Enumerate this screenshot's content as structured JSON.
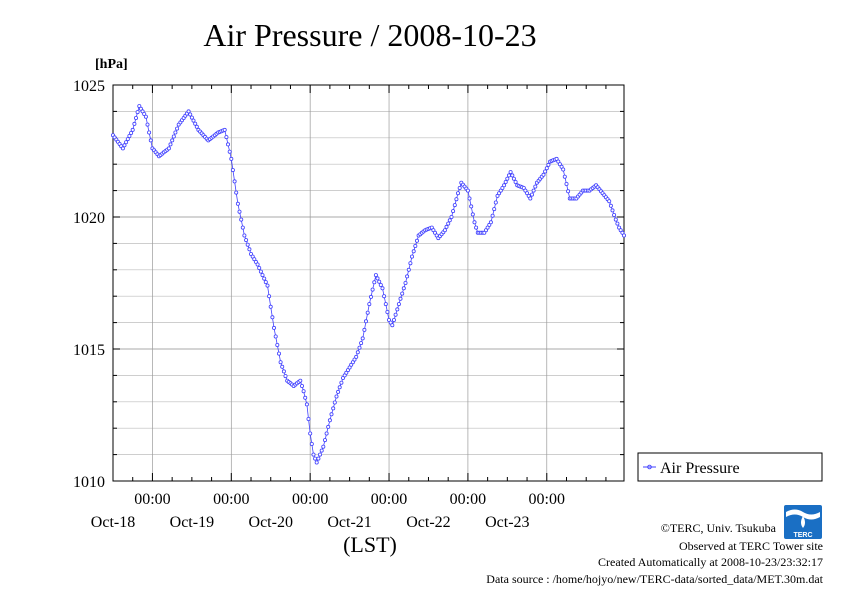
{
  "chart_data": {
    "type": "line",
    "title": "Air Pressure / 2008-10-23",
    "ylabel": "[hPa]",
    "xlabel": "(LST)",
    "ylim": [
      1010,
      1025
    ],
    "yticks": [
      "1010",
      "1015",
      "1020",
      "1025"
    ],
    "x_range": [
      "2008-10-17T12:00",
      "2008-10-23T23:30"
    ],
    "x_tick_time_label": "00:00",
    "x_date_labels": [
      "Oct-18",
      "Oct-19",
      "Oct-20",
      "Oct-21",
      "Oct-22",
      "Oct-23"
    ],
    "grid": true,
    "legend_position": "right",
    "series": [
      {
        "name": "Air Pressure",
        "color": "#4040ff",
        "interval": "30min",
        "points": [
          [
            "2008-10-17T12:00",
            1023.1
          ],
          [
            "2008-10-17T15:00",
            1022.6
          ],
          [
            "2008-10-17T18:00",
            1023.3
          ],
          [
            "2008-10-17T20:00",
            1024.2
          ],
          [
            "2008-10-17T22:00",
            1023.8
          ],
          [
            "2008-10-18T00:00",
            1022.6
          ],
          [
            "2008-10-18T02:00",
            1022.3
          ],
          [
            "2008-10-18T05:00",
            1022.6
          ],
          [
            "2008-10-18T08:00",
            1023.5
          ],
          [
            "2008-10-18T11:00",
            1024.0
          ],
          [
            "2008-10-18T14:00",
            1023.3
          ],
          [
            "2008-10-18T17:00",
            1022.9
          ],
          [
            "2008-10-18T20:00",
            1023.2
          ],
          [
            "2008-10-18T22:00",
            1023.3
          ],
          [
            "2008-10-19T00:00",
            1022.2
          ],
          [
            "2008-10-19T02:00",
            1020.5
          ],
          [
            "2008-10-19T04:00",
            1019.3
          ],
          [
            "2008-10-19T06:00",
            1018.6
          ],
          [
            "2008-10-19T08:00",
            1018.2
          ],
          [
            "2008-10-19T11:00",
            1017.4
          ],
          [
            "2008-10-19T13:00",
            1015.8
          ],
          [
            "2008-10-19T15:00",
            1014.5
          ],
          [
            "2008-10-19T17:00",
            1013.8
          ],
          [
            "2008-10-19T19:00",
            1013.6
          ],
          [
            "2008-10-19T21:00",
            1013.8
          ],
          [
            "2008-10-19T22:00",
            1013.4
          ],
          [
            "2008-10-19T23:00",
            1012.9
          ],
          [
            "2008-10-20T00:00",
            1011.8
          ],
          [
            "2008-10-20T01:00",
            1011.0
          ],
          [
            "2008-10-20T02:00",
            1010.7
          ],
          [
            "2008-10-20T04:00",
            1011.3
          ],
          [
            "2008-10-20T06:00",
            1012.3
          ],
          [
            "2008-10-20T08:00",
            1013.2
          ],
          [
            "2008-10-20T10:00",
            1013.9
          ],
          [
            "2008-10-20T12:00",
            1014.3
          ],
          [
            "2008-10-20T14:00",
            1014.7
          ],
          [
            "2008-10-20T16:00",
            1015.4
          ],
          [
            "2008-10-20T18:00",
            1016.7
          ],
          [
            "2008-10-20T20:00",
            1017.8
          ],
          [
            "2008-10-20T22:00",
            1017.3
          ],
          [
            "2008-10-21T00:00",
            1016.1
          ],
          [
            "2008-10-21T01:00",
            1015.9
          ],
          [
            "2008-10-21T03:00",
            1016.7
          ],
          [
            "2008-10-21T05:00",
            1017.5
          ],
          [
            "2008-10-21T07:00",
            1018.5
          ],
          [
            "2008-10-21T09:00",
            1019.3
          ],
          [
            "2008-10-21T11:00",
            1019.5
          ],
          [
            "2008-10-21T13:00",
            1019.6
          ],
          [
            "2008-10-21T14:00",
            1019.4
          ],
          [
            "2008-10-21T15:00",
            1019.2
          ],
          [
            "2008-10-21T17:00",
            1019.5
          ],
          [
            "2008-10-21T19:00",
            1020.0
          ],
          [
            "2008-10-21T21:00",
            1020.9
          ],
          [
            "2008-10-21T22:00",
            1021.3
          ],
          [
            "2008-10-22T00:00",
            1021.0
          ],
          [
            "2008-10-22T02:00",
            1019.8
          ],
          [
            "2008-10-22T03:00",
            1019.4
          ],
          [
            "2008-10-22T05:00",
            1019.4
          ],
          [
            "2008-10-22T07:00",
            1019.8
          ],
          [
            "2008-10-22T09:00",
            1020.8
          ],
          [
            "2008-10-22T11:00",
            1021.2
          ],
          [
            "2008-10-22T13:00",
            1021.7
          ],
          [
            "2008-10-22T15:00",
            1021.2
          ],
          [
            "2008-10-22T17:00",
            1021.1
          ],
          [
            "2008-10-22T19:00",
            1020.7
          ],
          [
            "2008-10-22T21:00",
            1021.3
          ],
          [
            "2008-10-22T23:00",
            1021.6
          ],
          [
            "2008-10-23T01:00",
            1022.1
          ],
          [
            "2008-10-23T03:00",
            1022.2
          ],
          [
            "2008-10-23T05:00",
            1021.8
          ],
          [
            "2008-10-23T07:00",
            1020.7
          ],
          [
            "2008-10-23T09:00",
            1020.7
          ],
          [
            "2008-10-23T11:00",
            1021.0
          ],
          [
            "2008-10-23T13:00",
            1021.0
          ],
          [
            "2008-10-23T15:00",
            1021.2
          ],
          [
            "2008-10-23T17:00",
            1020.9
          ],
          [
            "2008-10-23T19:00",
            1020.6
          ],
          [
            "2008-10-23T21:00",
            1019.9
          ],
          [
            "2008-10-23T22:00",
            1019.6
          ],
          [
            "2008-10-23T23:30",
            1019.3
          ]
        ]
      }
    ]
  },
  "legend": {
    "label": "Air Pressure"
  },
  "footer": {
    "copyright": "©TERC, Univ. Tsukuba",
    "observed": "Observed at TERC Tower site",
    "created": "Created Automatically at 2008-10-23/23:32:17",
    "source": "Data source : /home/hojyo/new/TERC-data/sorted_data/MET.30m.dat"
  },
  "logo": {
    "text": "TERC",
    "color": "#1a6fc4"
  }
}
